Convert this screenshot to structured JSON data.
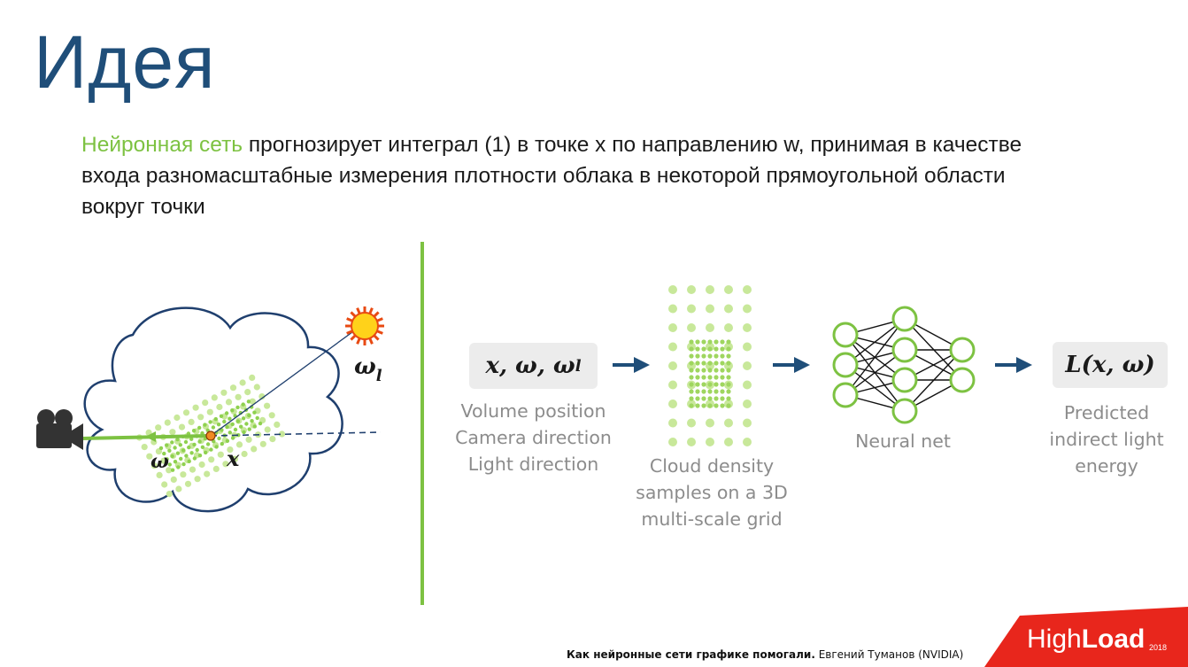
{
  "slide": {
    "title": "Идея",
    "description": {
      "highlight": "Нейронная сеть",
      "rest": " прогнозирует интеграл (1) в точке x по направлению w, принимая в качестве входа разномасштабные измерения плотности облака в некоторой прямоугольной области вокруг точки"
    }
  },
  "cloud_figure": {
    "label_omega_l": "ωl",
    "label_omega_l_base": "ω",
    "label_omega_l_sub": "l",
    "label_omega": "ω",
    "label_x": "x"
  },
  "pipeline": {
    "input_box": "x, ω, ωl",
    "input_box_main": "x, ω, ω",
    "input_box_sub": "l",
    "input_caption": [
      "Volume position",
      "Camera direction",
      "Light direction"
    ],
    "grid_caption": [
      "Cloud density",
      "samples on a 3D",
      "multi-scale grid"
    ],
    "nn_caption": [
      "Neural net"
    ],
    "output_box": "L(x, ω)",
    "output_caption": [
      "Predicted",
      "indirect light",
      "energy"
    ]
  },
  "footer": {
    "bold": "Как нейронные сети графике помогали.",
    "normal": " Евгений Туманов (NVIDIA)"
  },
  "logo": {
    "text_light": "High",
    "text_bold": "Load",
    "year": "2018"
  },
  "colors": {
    "title": "#1f4e79",
    "accent_green": "#7dc242",
    "arrow_blue": "#1f4e79",
    "caption_gray": "#8c8c8c",
    "logo_red": "#e8261c"
  }
}
